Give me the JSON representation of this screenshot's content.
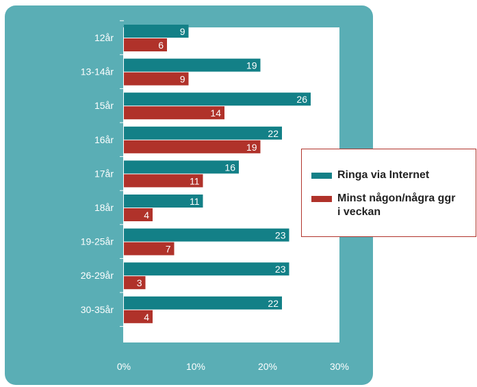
{
  "colors": {
    "card_background": "#5aaeb5",
    "plot_background": "#ffffff",
    "legend_border": "#b0322a"
  },
  "chart_data": {
    "type": "bar",
    "orientation": "horizontal",
    "categories": [
      "12år",
      "13-14år",
      "15år",
      "16år",
      "17år",
      "18år",
      "19-25år",
      "26-29år",
      "30-35år"
    ],
    "series": [
      {
        "name": "Ringa via Internet",
        "color": "#138087",
        "values": [
          9,
          19,
          26,
          22,
          16,
          11,
          23,
          23,
          22
        ]
      },
      {
        "name": "Minst någon/några ggr i veckan",
        "color": "#b0322a",
        "values": [
          6,
          9,
          14,
          19,
          11,
          4,
          7,
          3,
          4
        ]
      }
    ],
    "x_ticks": [
      "0%",
      "10%",
      "20%",
      "30%"
    ],
    "xlim": [
      0,
      30
    ],
    "legend_position": "right",
    "data_labels": "inside bar end"
  }
}
